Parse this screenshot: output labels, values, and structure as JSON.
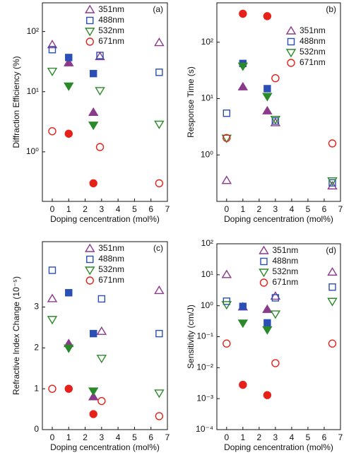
{
  "chart_data": [
    {
      "type": "scatter",
      "label": "(a)",
      "xlabel": "Doping cencentration (mol%)",
      "ylabel": "Diffraction Efficiency (%)",
      "xlim": [
        -0.6,
        7
      ],
      "xticks": [
        0,
        1,
        2,
        3,
        4,
        5,
        6,
        7
      ],
      "log": true,
      "ylim": [
        0.15,
        300
      ],
      "yticks": [
        {
          "value": 1,
          "label": "10⁰"
        },
        {
          "value": 10,
          "label": "10¹"
        },
        {
          "value": 100,
          "label": "10²"
        }
      ],
      "legend": "upper center",
      "series": [
        {
          "name": "351nm",
          "color": "#8b3a8b",
          "marker": "triangle-up",
          "x": [
            0,
            1,
            2.5,
            2.9,
            6.5
          ],
          "values": [
            60,
            30,
            4.5,
            38,
            65
          ],
          "filled": [
            false,
            true,
            true,
            false,
            false
          ]
        },
        {
          "name": "488nm",
          "color": "#2a4fb5",
          "marker": "square",
          "x": [
            0,
            1,
            2.5,
            2.9,
            6.5
          ],
          "values": [
            50,
            37,
            20,
            40,
            21
          ],
          "filled": [
            false,
            true,
            true,
            false,
            false
          ]
        },
        {
          "name": "532nm",
          "color": "#2a8a2a",
          "marker": "triangle-down",
          "x": [
            0,
            1,
            2.5,
            2.9,
            6.5
          ],
          "values": [
            22,
            12.5,
            2.8,
            10.5,
            2.9
          ],
          "filled": [
            false,
            true,
            true,
            false,
            false
          ]
        },
        {
          "name": "671nm",
          "color": "#e8201a",
          "marker": "circle",
          "x": [
            0,
            1,
            2.5,
            2.9,
            6.5
          ],
          "values": [
            2.2,
            2.0,
            0.3,
            1.2,
            0.3
          ],
          "filled": [
            false,
            true,
            true,
            false,
            false
          ]
        }
      ]
    },
    {
      "type": "scatter",
      "label": "(b)",
      "xlabel": "Doping cencentration (mol%)",
      "ylabel": "Response Time (s)",
      "xlim": [
        -0.6,
        7
      ],
      "xticks": [
        0,
        1,
        2,
        3,
        4,
        5,
        6,
        7
      ],
      "log": true,
      "ylim": [
        0.15,
        500
      ],
      "yticks": [
        {
          "value": 1,
          "label": "10⁰"
        },
        {
          "value": 10,
          "label": "10¹"
        },
        {
          "value": 100,
          "label": "10²"
        }
      ],
      "legend": "center right",
      "series": [
        {
          "name": "351nm",
          "color": "#8b3a8b",
          "marker": "triangle-up",
          "x": [
            0,
            1,
            2.5,
            3,
            6.5
          ],
          "values": [
            0.35,
            16,
            6,
            3.7,
            0.28
          ],
          "filled": [
            false,
            true,
            true,
            false,
            false
          ]
        },
        {
          "name": "488nm",
          "color": "#2a4fb5",
          "marker": "square",
          "x": [
            0,
            1,
            2.5,
            3,
            6.5
          ],
          "values": [
            5.5,
            42,
            15,
            4,
            0.32
          ],
          "filled": [
            false,
            true,
            true,
            false,
            false
          ]
        },
        {
          "name": "532nm",
          "color": "#2a8a2a",
          "marker": "triangle-down",
          "x": [
            0,
            1,
            2.5,
            3,
            6.5
          ],
          "values": [
            2.0,
            38,
            11,
            4.3,
            0.35
          ],
          "filled": [
            false,
            true,
            true,
            false,
            false
          ]
        },
        {
          "name": "671nm",
          "color": "#e8201a",
          "marker": "circle",
          "x": [
            0,
            1,
            2.5,
            3,
            6.5
          ],
          "values": [
            2.0,
            320,
            290,
            23,
            1.6
          ],
          "filled": [
            false,
            true,
            true,
            false,
            false
          ]
        }
      ]
    },
    {
      "type": "scatter",
      "label": "(c)",
      "xlabel": "Doping cencentration (mol%)",
      "ylabel": "Refractive Index Change (10⁻⁵)",
      "xlim": [
        -0.6,
        7
      ],
      "xticks": [
        0,
        1,
        2,
        3,
        4,
        5,
        6,
        7
      ],
      "log": false,
      "ylim": [
        0,
        4.6
      ],
      "yticks": [
        0,
        1,
        2,
        3
      ],
      "legend": "upper center",
      "series": [
        {
          "name": "351nm",
          "color": "#8b3a8b",
          "marker": "triangle-up",
          "x": [
            0,
            1,
            2.5,
            3,
            6.5
          ],
          "values": [
            3.2,
            2.1,
            0.8,
            2.4,
            3.4
          ],
          "filled": [
            false,
            true,
            true,
            false,
            false
          ]
        },
        {
          "name": "488nm",
          "color": "#2a4fb5",
          "marker": "square",
          "x": [
            0,
            1,
            2.5,
            3,
            6.5
          ],
          "values": [
            3.9,
            3.35,
            2.35,
            3.2,
            2.35
          ],
          "filled": [
            false,
            true,
            true,
            false,
            false
          ]
        },
        {
          "name": "532nm",
          "color": "#2a8a2a",
          "marker": "triangle-down",
          "x": [
            0,
            1,
            2.5,
            3,
            6.5
          ],
          "values": [
            2.7,
            2.0,
            0.95,
            1.75,
            0.9
          ],
          "filled": [
            false,
            true,
            true,
            false,
            false
          ]
        },
        {
          "name": "671nm",
          "color": "#e8201a",
          "marker": "circle",
          "x": [
            0,
            1,
            2.5,
            3,
            6.5
          ],
          "values": [
            1.0,
            1.0,
            0.38,
            0.7,
            0.33
          ],
          "filled": [
            false,
            true,
            true,
            false,
            false
          ]
        }
      ]
    },
    {
      "type": "scatter",
      "label": "(d)",
      "xlabel": "Doping cencentration (mol%)",
      "ylabel": "Sensitivity (cm/J)",
      "xlim": [
        -0.6,
        7
      ],
      "xticks": [
        0,
        1,
        2,
        3,
        4,
        5,
        6,
        7
      ],
      "log": true,
      "ylim": [
        0.0001,
        100
      ],
      "yticks": [
        {
          "value": 0.0001,
          "label": "10⁻⁴"
        },
        {
          "value": 0.001,
          "label": "10⁻³"
        },
        {
          "value": 0.01,
          "label": "10⁻²"
        },
        {
          "value": 0.1,
          "label": "10⁻¹"
        },
        {
          "value": 1,
          "label": "10⁰"
        },
        {
          "value": 10,
          "label": "10¹"
        },
        {
          "value": 100,
          "label": "10²"
        }
      ],
      "legend": "upper center",
      "series": [
        {
          "name": "351nm",
          "color": "#8b3a8b",
          "marker": "triangle-up",
          "x": [
            0,
            1,
            2.5,
            3,
            6.5
          ],
          "values": [
            10,
            0.9,
            0.75,
            2,
            12
          ],
          "filled": [
            false,
            true,
            true,
            false,
            false
          ]
        },
        {
          "name": "488nm",
          "color": "#2a4fb5",
          "marker": "square",
          "x": [
            0,
            1,
            2.5,
            3,
            6.5
          ],
          "values": [
            1.4,
            0.95,
            0.28,
            1.8,
            4
          ],
          "filled": [
            false,
            true,
            true,
            false,
            false
          ]
        },
        {
          "name": "532nm",
          "color": "#2a8a2a",
          "marker": "triangle-down",
          "x": [
            0,
            1,
            2.5,
            3,
            6.5
          ],
          "values": [
            1.1,
            0.28,
            0.17,
            0.55,
            1.4
          ],
          "filled": [
            false,
            true,
            true,
            false,
            false
          ]
        },
        {
          "name": "671nm",
          "color": "#e8201a",
          "marker": "circle",
          "x": [
            0,
            1,
            2.5,
            3,
            6.5
          ],
          "values": [
            0.06,
            0.0028,
            0.0013,
            0.014,
            0.06
          ],
          "filled": [
            false,
            true,
            true,
            false,
            false
          ]
        }
      ]
    }
  ]
}
